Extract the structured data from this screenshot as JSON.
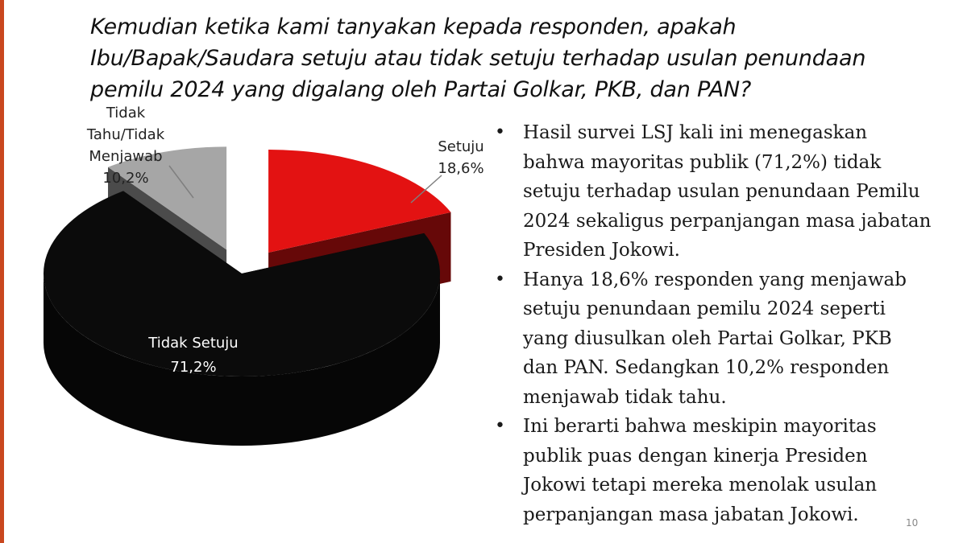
{
  "title_lines": [
    "Kemudian ketika kami tanyakan kepada responden, apakah",
    "Ibu/Bapak/Saudara setuju atau tidak setuju terhadap usulan penundaan",
    "pemilu 2024 yang digalang oleh Partai Golkar, PKB, dan PAN?"
  ],
  "chart_data": {
    "type": "pie",
    "style": "3d-exploded",
    "slices": [
      {
        "label_lines": [
          "Setuju",
          "18,6%"
        ],
        "value": 18.6,
        "color": "#e31212"
      },
      {
        "label_lines": [
          "Tidak Setuju",
          "71,2%"
        ],
        "value": 71.2,
        "color": "#0b0b0b"
      },
      {
        "label_lines": [
          "Tidak",
          "Tahu/Tidak",
          "Menjawab",
          "10,2%"
        ],
        "value": 10.2,
        "color": "#a6a6a6"
      }
    ]
  },
  "bullets": [
    {
      "lines": [
        "Hasil survei  LSJ kali ini menegaskan",
        "bahwa mayoritas publik (71,2%) tidak",
        "setuju terhadap usulan penundaan Pemilu",
        "2024 sekaligus perpanjangan masa jabatan",
        "Presiden Jokowi."
      ]
    },
    {
      "lines": [
        "Hanya 18,6% responden yang menjawab",
        "setuju penundaan pemilu 2024 seperti",
        "yang diusulkan oleh Partai Golkar, PKB",
        "dan PAN. Sedangkan 10,2% responden",
        "menjawab tidak tahu."
      ]
    },
    {
      "lines": [
        "Ini berarti bahwa meskipin mayoritas",
        "publik puas dengan kinerja Presiden",
        "Jokowi tetapi mereka menolak usulan",
        "perpanjangan masa jabatan Jokowi."
      ]
    }
  ],
  "bullet_symbol": "•",
  "slide_number": "10"
}
